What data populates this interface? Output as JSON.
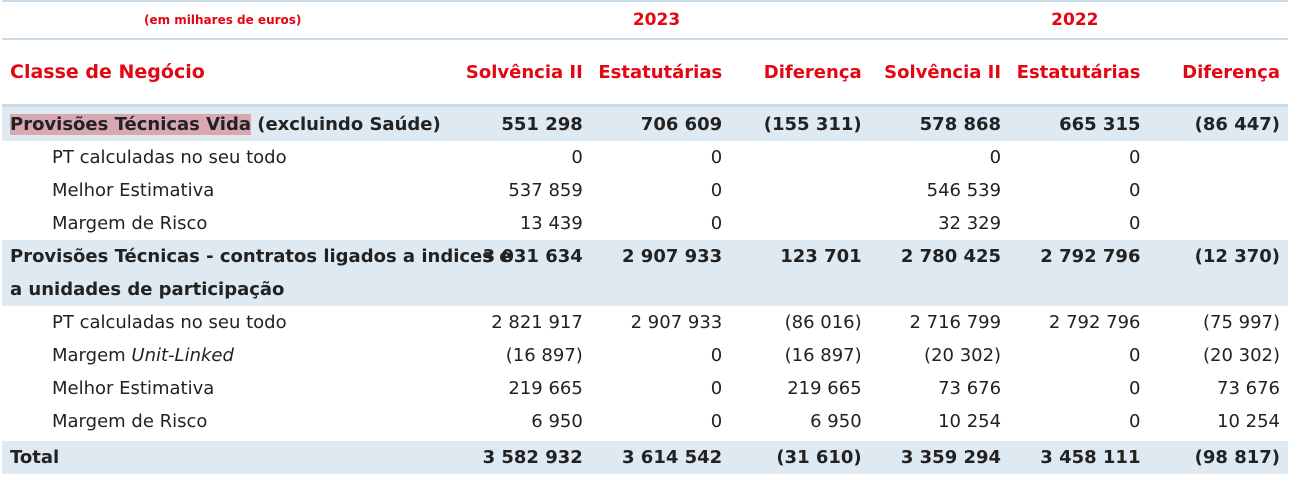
{
  "header": {
    "unit_note": "(em milhares de euros)",
    "years": [
      "2023",
      "2022"
    ],
    "class_label": "Classe de Negócio",
    "columns": [
      "Solvência II",
      "Estatutárias",
      "Diferença",
      "Solvência II",
      "Estatutárias",
      "Diferença"
    ]
  },
  "rows": [
    {
      "label_highlight": "Provisões Técnicas Vida",
      "label_rest": " (excluindo Saúde)",
      "values": [
        "551 298",
        "706 609",
        "(155 311)",
        "578 868",
        "665 315",
        "(86 447)"
      ]
    },
    {
      "label": "PT calculadas no seu todo",
      "values": [
        "0",
        "0",
        "",
        "0",
        "0",
        ""
      ]
    },
    {
      "label": "Melhor Estimativa",
      "values": [
        "537 859",
        "0",
        "",
        "546 539",
        "0",
        ""
      ]
    },
    {
      "label": "Margem de Risco",
      "values": [
        "13 439",
        "0",
        "",
        "32 329",
        "0",
        ""
      ]
    },
    {
      "label_line1": "Provisões Técnicas - contratos ligados a indices e",
      "label_line2": "a unidades de participação",
      "values": [
        "3 031 634",
        "2 907 933",
        "123 701",
        "2 780 425",
        "2 792 796",
        "(12 370)"
      ]
    },
    {
      "label": "PT calculadas no seu todo",
      "values": [
        "2 821 917",
        "2 907 933",
        "(86 016)",
        "2 716 799",
        "2 792 796",
        "(75 997)"
      ]
    },
    {
      "label_plain": "Margem ",
      "label_italic": "Unit-Linked",
      "values": [
        "(16 897)",
        "0",
        "(16 897)",
        "(20 302)",
        "0",
        "(20 302)"
      ]
    },
    {
      "label": "Melhor Estimativa",
      "values": [
        "219 665",
        "0",
        "219 665",
        "73 676",
        "0",
        "73 676"
      ]
    },
    {
      "label": "Margem de Risco",
      "values": [
        "6 950",
        "0",
        "6 950",
        "10 254",
        "0",
        "10 254"
      ]
    },
    {
      "label": "Total",
      "values": [
        "3 582 932",
        "3 614 542",
        "(31 610)",
        "3 359 294",
        "3 458 111",
        "(98 817)"
      ]
    }
  ]
}
